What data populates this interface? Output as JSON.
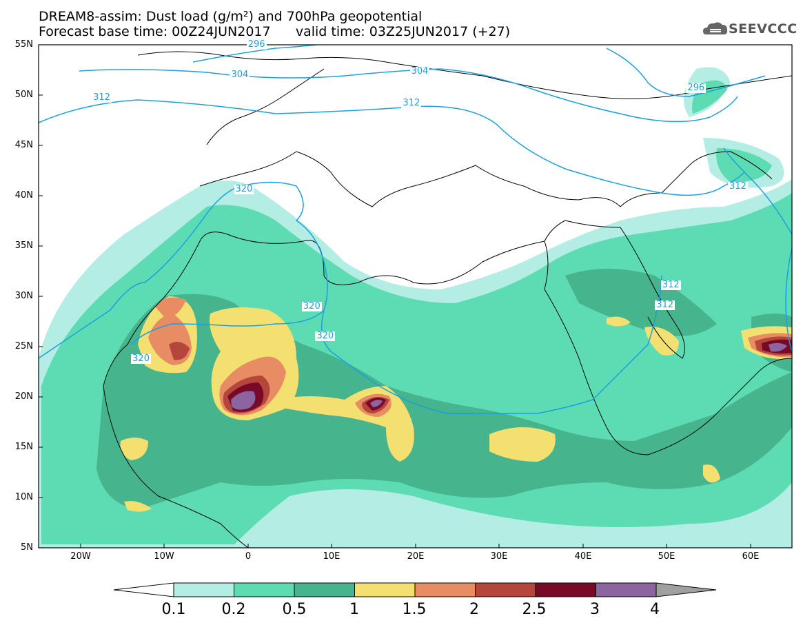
{
  "header": {
    "title_line1": "DREAM8-assim: Dust load (g/m²) and 700hPa geopotential",
    "title_line2": "Forecast base time: 00Z24JUN2017      valid time: 03Z25JUN2017 (+27)",
    "logo_text": "SEEVCCC"
  },
  "map": {
    "lat_labels": [
      "55N",
      "50N",
      "45N",
      "40N",
      "35N",
      "30N",
      "25N",
      "20N",
      "15N",
      "10N",
      "5N"
    ],
    "lon_labels": [
      "20W",
      "10W",
      "0",
      "10E",
      "20E",
      "30E",
      "40E",
      "50E",
      "60E"
    ],
    "contour_labels": [
      {
        "text": "296",
        "lon": 1,
        "lat": 55
      },
      {
        "text": "304",
        "lon": -1,
        "lat": 52
      },
      {
        "text": "304",
        "lon": 20.5,
        "lat": 52.3
      },
      {
        "text": "312",
        "lon": -17.5,
        "lat": 49.7
      },
      {
        "text": "312",
        "lon": 19.5,
        "lat": 49.2
      },
      {
        "text": "296",
        "lon": 53.5,
        "lat": 50.7
      },
      {
        "text": "312",
        "lon": 58.5,
        "lat": 40.9
      },
      {
        "text": "312",
        "lon": 50.5,
        "lat": 31.1
      },
      {
        "text": "312",
        "lon": 49.8,
        "lat": 29.1
      },
      {
        "text": "320",
        "lon": -0.5,
        "lat": 40.6
      },
      {
        "text": "320",
        "lon": 7.6,
        "lat": 29.0
      },
      {
        "text": "320",
        "lon": 9.2,
        "lat": 26.0
      },
      {
        "text": "320",
        "lon": -12.8,
        "lat": 23.8
      }
    ],
    "contour_color": "#1a9fe0"
  },
  "legend": {
    "labels": [
      "0.1",
      "0.2",
      "0.5",
      "1",
      "1.5",
      "2",
      "2.5",
      "3",
      "4"
    ],
    "colors": [
      "#ffffff",
      "#b4ede4",
      "#5ddcb4",
      "#46b48c",
      "#f4e070",
      "#e88c64",
      "#b4463c",
      "#780a28",
      "#8c64a0",
      "#a0a0a0"
    ]
  }
}
